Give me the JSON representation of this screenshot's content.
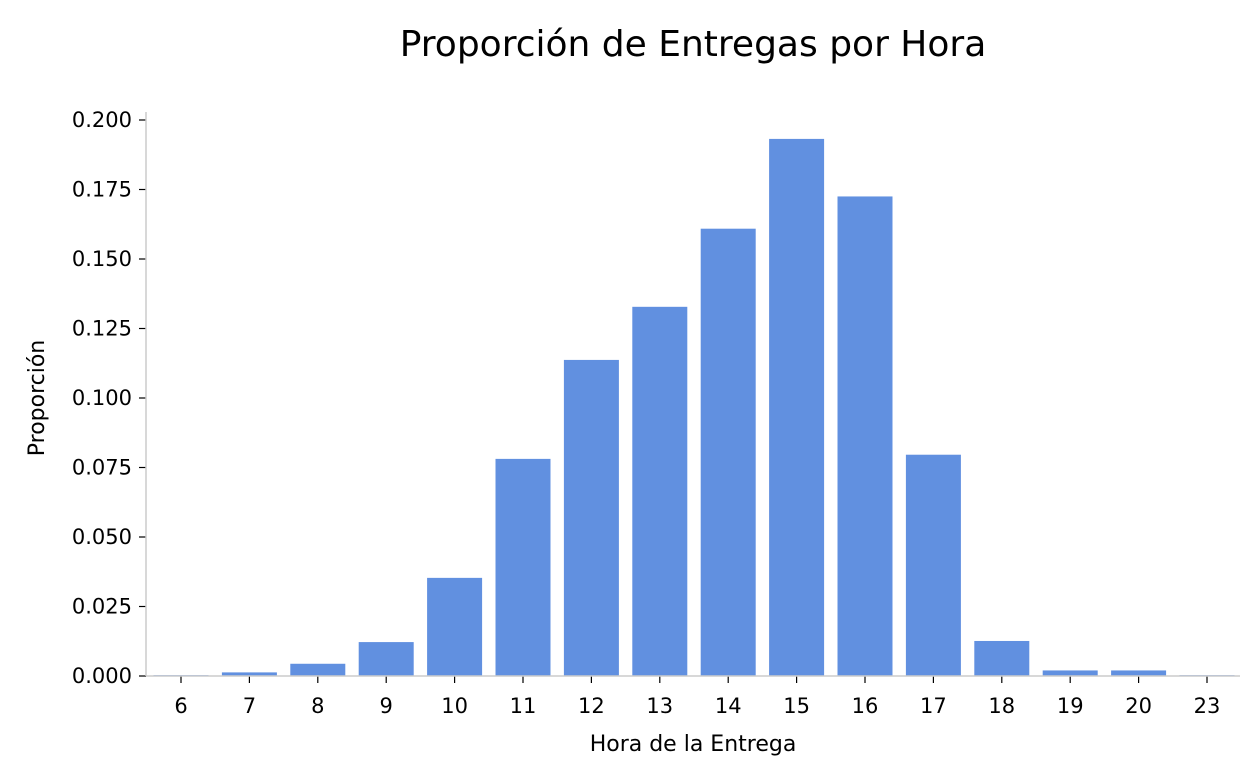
{
  "chart_data": {
    "type": "bar",
    "title": "Proporción de Entregas por Hora",
    "xlabel": "Hora de la Entrega",
    "ylabel": "Proporción",
    "categories": [
      "6",
      "7",
      "8",
      "9",
      "10",
      "11",
      "12",
      "13",
      "14",
      "15",
      "16",
      "17",
      "18",
      "19",
      "20",
      "23"
    ],
    "values": [
      0.0003,
      0.0013,
      0.0044,
      0.0122,
      0.0353,
      0.0781,
      0.1137,
      0.1328,
      0.1609,
      0.1932,
      0.1725,
      0.0796,
      0.0126,
      0.002,
      0.002,
      0.0003
    ],
    "ylim": [
      0,
      0.2
    ],
    "yticks": [
      "0.000",
      "0.025",
      "0.050",
      "0.075",
      "0.100",
      "0.125",
      "0.150",
      "0.175",
      "0.200"
    ],
    "color": "#6190e0",
    "grid": false,
    "legend": "none"
  }
}
